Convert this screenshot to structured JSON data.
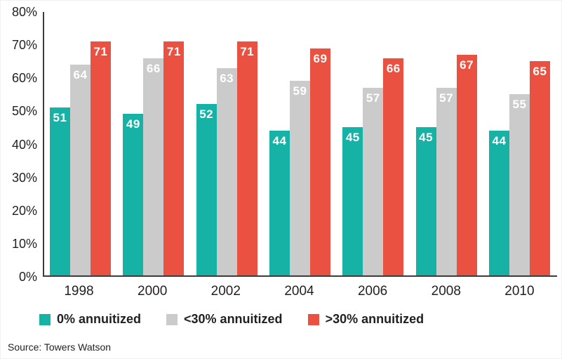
{
  "chart_data": {
    "type": "bar",
    "categories": [
      "1998",
      "2000",
      "2002",
      "2004",
      "2006",
      "2008",
      "2010"
    ],
    "series": [
      {
        "name": "0% annuitized",
        "color": "#15b2a5",
        "values": [
          51,
          49,
          52,
          44,
          45,
          45,
          44
        ]
      },
      {
        "name": "<30% annuitized",
        "color": "#cbcbcb",
        "values": [
          64,
          66,
          63,
          59,
          57,
          57,
          55
        ]
      },
      {
        "name": ">30% annuitized",
        "color": "#eb5140",
        "values": [
          71,
          71,
          71,
          69,
          66,
          67,
          65
        ]
      }
    ],
    "ylabel": "",
    "xlabel": "",
    "ylim": [
      0,
      80
    ],
    "ytick_step": 10,
    "ytick_labels": [
      "0%",
      "10%",
      "20%",
      "30%",
      "40%",
      "50%",
      "60%",
      "70%",
      "80%"
    ],
    "grid": false,
    "legend_position": "bottom",
    "value_labels": "inside-top",
    "axis_color": "#3d3b3c"
  },
  "source": "Source: Towers Watson"
}
